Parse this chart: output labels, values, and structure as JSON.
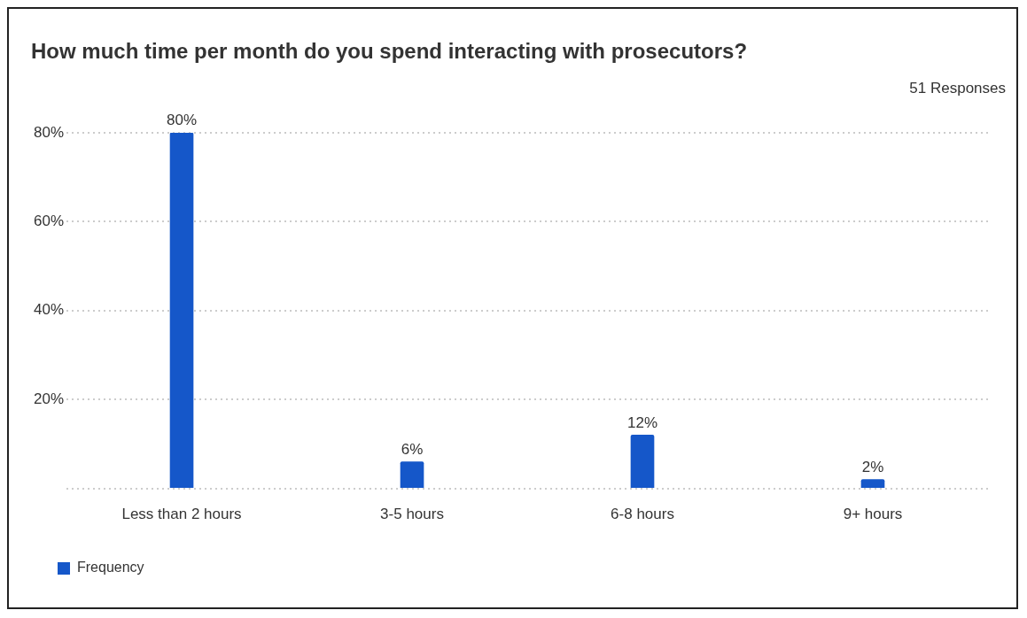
{
  "chart_data": {
    "type": "bar",
    "title": "How much time per month do you spend interacting with prosecutors?",
    "subtitle": "51 Responses",
    "categories": [
      "Less than 2 hours",
      "3-5 hours",
      "6-8 hours",
      "9+ hours"
    ],
    "series": [
      {
        "name": "Frequency",
        "color": "#1557c9",
        "values": [
          80,
          6,
          12,
          2
        ]
      }
    ],
    "value_labels": [
      "80%",
      "6%",
      "12%",
      "2%"
    ],
    "ylim": [
      0,
      80
    ],
    "yticks": [
      {
        "value": 0,
        "label": null
      },
      {
        "value": 20,
        "label": "20%"
      },
      {
        "value": 40,
        "label": "40%"
      },
      {
        "value": 60,
        "label": "60%"
      },
      {
        "value": 80,
        "label": "80%"
      }
    ],
    "grid": "y",
    "legend": "bottom left"
  }
}
